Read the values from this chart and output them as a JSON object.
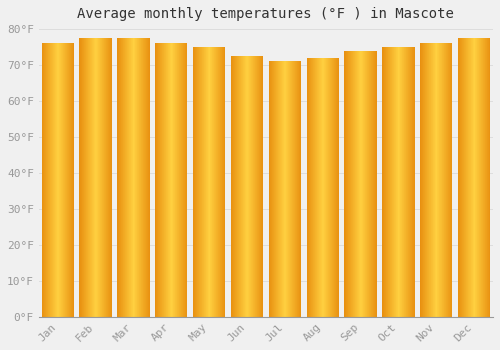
{
  "title": "Average monthly temperatures (°F ) in Mascote",
  "categories": [
    "Jan",
    "Feb",
    "Mar",
    "Apr",
    "May",
    "Jun",
    "Jul",
    "Aug",
    "Sep",
    "Oct",
    "Nov",
    "Dec"
  ],
  "values": [
    76.0,
    77.5,
    77.5,
    76.0,
    75.0,
    72.5,
    71.0,
    72.0,
    74.0,
    75.0,
    76.0,
    77.5
  ],
  "bar_color_center": "#FFD040",
  "bar_color_edge": "#E89010",
  "bar_edge_color": "#C87800",
  "background_color": "#F0F0F0",
  "ylim": [
    0,
    80
  ],
  "yticks": [
    0,
    10,
    20,
    30,
    40,
    50,
    60,
    70,
    80
  ],
  "ytick_labels": [
    "0°F",
    "10°F",
    "20°F",
    "30°F",
    "40°F",
    "50°F",
    "60°F",
    "70°F",
    "80°F"
  ],
  "title_fontsize": 10,
  "tick_fontsize": 8,
  "grid_color": "#DDDDDD",
  "font_family": "monospace"
}
